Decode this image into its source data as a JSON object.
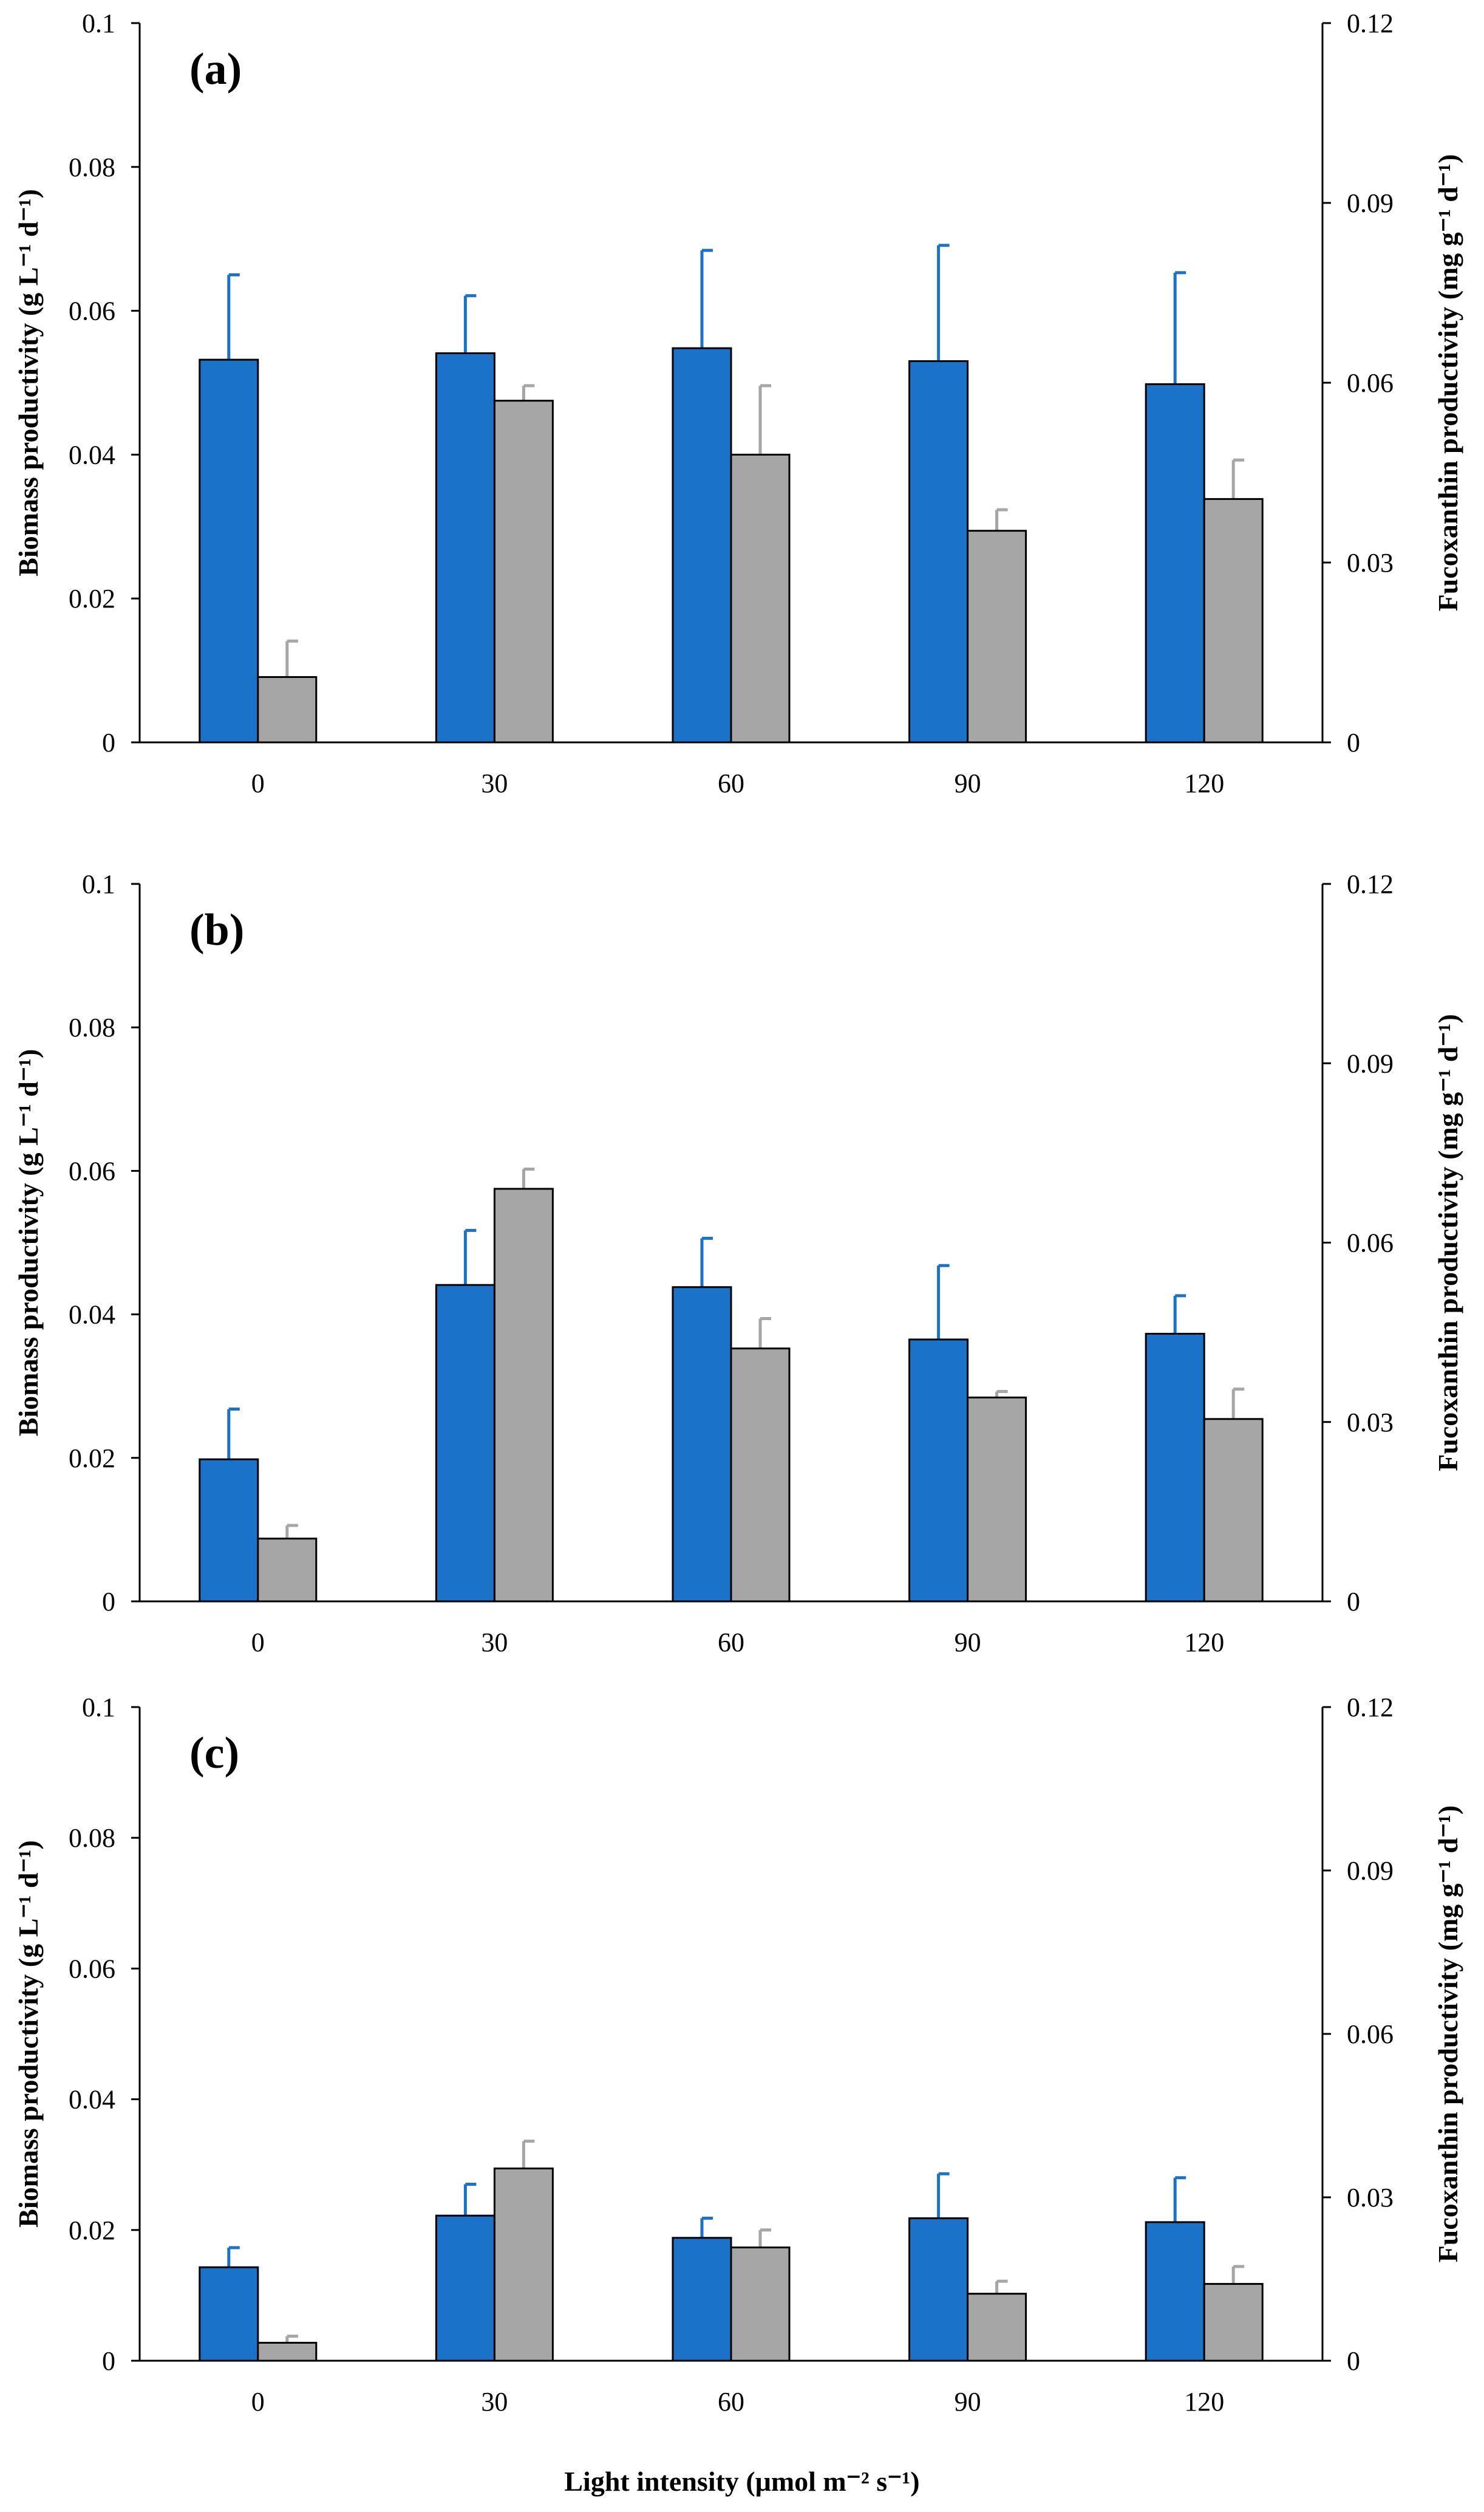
{
  "figure": {
    "xlabel": "Light intensity (μmol m⁻² s⁻¹)"
  },
  "colors": {
    "biomass": "#1a73c9",
    "fucoxanthin": "#a6a6a6",
    "outline": "#000000"
  },
  "chart_data": [
    {
      "type": "bar",
      "panel_label": "(a)",
      "categories": [
        "0",
        "30",
        "60",
        "90",
        "120"
      ],
      "ylabel_left": "Biomass productivity (g L⁻¹ d⁻¹)",
      "ylabel_right": "Fucoxanthin productivity (mg g⁻¹ d⁻¹)",
      "ylim_left": [
        0,
        0.1
      ],
      "ylim_right": [
        0,
        0.12
      ],
      "yticks_left": [
        "0",
        "0.02",
        "0.04",
        "0.06",
        "0.08",
        "0.1"
      ],
      "yticks_right": [
        "0",
        "0.03",
        "0.06",
        "0.09",
        "0.12"
      ],
      "series": [
        {
          "name": "Biomass productivity",
          "axis": "left",
          "values": [
            0.0532,
            0.0541,
            0.0548,
            0.053,
            0.0498
          ],
          "errors": [
            0.0118,
            0.008,
            0.0136,
            0.0161,
            0.0155
          ]
        },
        {
          "name": "Fucoxanthin productivity",
          "axis": "right",
          "values": [
            0.0109,
            0.057,
            0.048,
            0.0353,
            0.0406
          ],
          "errors": [
            0.006,
            0.0025,
            0.0115,
            0.0035,
            0.0065
          ]
        }
      ]
    },
    {
      "type": "bar",
      "panel_label": "(b)",
      "categories": [
        "0",
        "30",
        "60",
        "90",
        "120"
      ],
      "ylabel_left": "Biomass productivity (g L⁻¹ d⁻¹)",
      "ylabel_right": "Fucoxanthin productivity (mg g⁻¹ d⁻¹)",
      "ylim_left": [
        0,
        0.1
      ],
      "ylim_right": [
        0,
        0.12
      ],
      "yticks_left": [
        "0",
        "0.02",
        "0.04",
        "0.06",
        "0.08",
        "0.1"
      ],
      "yticks_right": [
        "0",
        "0.03",
        "0.06",
        "0.09",
        "0.12"
      ],
      "series": [
        {
          "name": "Biomass productivity",
          "axis": "left",
          "values": [
            0.0198,
            0.0441,
            0.0438,
            0.0365,
            0.0373
          ],
          "errors": [
            0.007,
            0.0076,
            0.0068,
            0.0103,
            0.0053
          ]
        },
        {
          "name": "Fucoxanthin productivity",
          "axis": "right",
          "values": [
            0.0105,
            0.069,
            0.0423,
            0.0341,
            0.0305
          ],
          "errors": [
            0.0022,
            0.0033,
            0.005,
            0.001,
            0.005
          ]
        }
      ]
    },
    {
      "type": "bar",
      "panel_label": "(c)",
      "categories": [
        "0",
        "30",
        "60",
        "90",
        "120"
      ],
      "ylabel_left": "Biomass productivity (g L⁻¹ d⁻¹)",
      "ylabel_right": "Fucoxanthin productivity (mg g⁻¹ d⁻¹)",
      "ylim_left": [
        0,
        0.1
      ],
      "ylim_right": [
        0,
        0.12
      ],
      "yticks_left": [
        "0",
        "0.02",
        "0.04",
        "0.06",
        "0.08",
        "0.1"
      ],
      "yticks_right": [
        "0",
        "0.03",
        "0.06",
        "0.09",
        "0.12"
      ],
      "series": [
        {
          "name": "Biomass productivity",
          "axis": "left",
          "values": [
            0.0143,
            0.0222,
            0.0188,
            0.0218,
            0.0212
          ],
          "errors": [
            0.003,
            0.0048,
            0.003,
            0.0068,
            0.0068
          ]
        },
        {
          "name": "Fucoxanthin productivity",
          "axis": "right",
          "values": [
            0.0033,
            0.0353,
            0.0208,
            0.0123,
            0.0141
          ],
          "errors": [
            0.0012,
            0.005,
            0.0032,
            0.0023,
            0.0032
          ]
        }
      ]
    }
  ]
}
